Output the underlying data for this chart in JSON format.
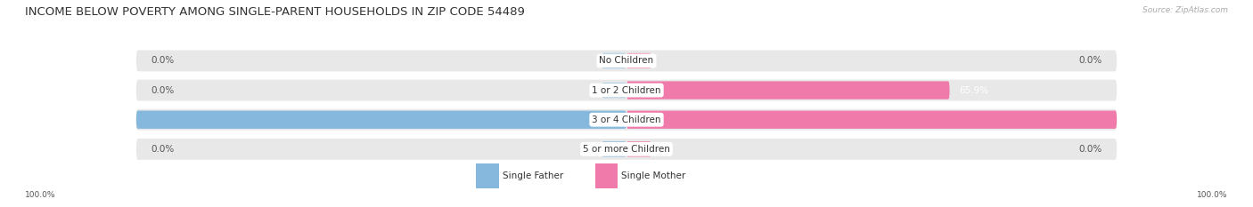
{
  "title": "INCOME BELOW POVERTY AMONG SINGLE-PARENT HOUSEHOLDS IN ZIP CODE 54489",
  "source": "Source: ZipAtlas.com",
  "categories": [
    "No Children",
    "1 or 2 Children",
    "3 or 4 Children",
    "5 or more Children"
  ],
  "single_father": [
    0.0,
    0.0,
    100.0,
    0.0
  ],
  "single_mother": [
    0.0,
    65.9,
    100.0,
    0.0
  ],
  "father_color": "#85b8dc",
  "mother_color": "#f07aaa",
  "bar_bg_color": "#e8e8e8",
  "bar_bg_color2": "#f2f2f2",
  "max_value": 100.0,
  "title_fontsize": 9.5,
  "label_fontsize": 7.5,
  "category_fontsize": 7.5,
  "source_fontsize": 6.5
}
